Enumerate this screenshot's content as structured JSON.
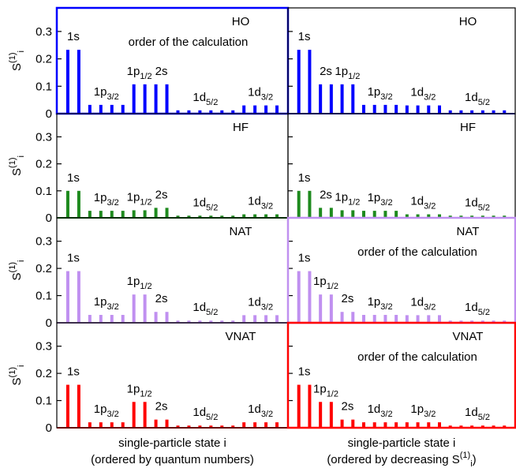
{
  "chart_data": [
    {
      "type": "bar",
      "label": "HO",
      "note": "order of the calculation",
      "highlight": true,
      "color": "#0000ff",
      "ylabel": "S(1)i",
      "ylim": [
        0,
        0.386
      ],
      "yticks": [
        0,
        0.1,
        0.2,
        0.3
      ],
      "categories": [
        "1s",
        null,
        "1p3/2",
        null,
        null,
        null,
        "1p1/2",
        null,
        "2s",
        null,
        "1d5/2",
        null,
        null,
        null,
        null,
        null,
        "1d3/2",
        null,
        null,
        null
      ],
      "values": [
        0.233,
        0.233,
        0.032,
        0.032,
        0.032,
        0.032,
        0.107,
        0.107,
        0.107,
        0.107,
        0.012,
        0.012,
        0.012,
        0.012,
        0.012,
        0.012,
        0.03,
        0.03,
        0.03,
        0.03
      ]
    },
    {
      "type": "bar",
      "label": "HO",
      "color": "#0000ff",
      "ylim": [
        0,
        0.386
      ],
      "categories": [
        "1s",
        null,
        "2s",
        null,
        "1p1/2",
        null,
        "1p3/2",
        null,
        null,
        null,
        "1d3/2",
        null,
        null,
        null,
        "1d5/2",
        null,
        null,
        null,
        null,
        null
      ],
      "values": [
        0.233,
        0.233,
        0.107,
        0.107,
        0.107,
        0.107,
        0.032,
        0.032,
        0.032,
        0.032,
        0.03,
        0.03,
        0.03,
        0.03,
        0.012,
        0.012,
        0.012,
        0.012,
        0.012,
        0.012
      ]
    },
    {
      "type": "bar",
      "label": "HF",
      "color": "#1e8a1e",
      "ylabel": "S(1)i",
      "ylim": [
        0,
        0.386
      ],
      "yticks": [
        0,
        0.1,
        0.2,
        0.3
      ],
      "categories": [
        "1s",
        null,
        "1p3/2",
        null,
        null,
        null,
        "1p1/2",
        null,
        "2s",
        null,
        "1d5/2",
        null,
        null,
        null,
        null,
        null,
        "1d3/2",
        null,
        null,
        null
      ],
      "values": [
        0.1,
        0.1,
        0.026,
        0.026,
        0.026,
        0.026,
        0.028,
        0.028,
        0.037,
        0.037,
        0.008,
        0.008,
        0.008,
        0.008,
        0.008,
        0.008,
        0.013,
        0.013,
        0.013,
        0.013
      ]
    },
    {
      "type": "bar",
      "label": "HF",
      "color": "#1e8a1e",
      "ylim": [
        0,
        0.386
      ],
      "categories": [
        "1s",
        null,
        "2s",
        null,
        "1p1/2",
        null,
        "1p3/2",
        null,
        null,
        null,
        "1d3/2",
        null,
        null,
        null,
        "1d5/2",
        null,
        null,
        null,
        null,
        null
      ],
      "values": [
        0.1,
        0.1,
        0.037,
        0.037,
        0.028,
        0.028,
        0.026,
        0.026,
        0.026,
        0.026,
        0.013,
        0.013,
        0.013,
        0.013,
        0.008,
        0.008,
        0.008,
        0.008,
        0.008,
        0.008
      ]
    },
    {
      "type": "bar",
      "label": "NAT",
      "color": "#c090f0",
      "ylabel": "S(1)i",
      "ylim": [
        0,
        0.386
      ],
      "yticks": [
        0,
        0.1,
        0.2,
        0.3
      ],
      "categories": [
        "1s",
        null,
        "1p3/2",
        null,
        null,
        null,
        "1p1/2",
        null,
        "2s",
        null,
        "1d5/2",
        null,
        null,
        null,
        null,
        null,
        "1d3/2",
        null,
        null,
        null
      ],
      "values": [
        0.19,
        0.19,
        0.029,
        0.029,
        0.029,
        0.029,
        0.104,
        0.104,
        0.04,
        0.04,
        0.008,
        0.008,
        0.008,
        0.008,
        0.008,
        0.008,
        0.028,
        0.028,
        0.028,
        0.028
      ]
    },
    {
      "type": "bar",
      "label": "NAT",
      "note": "order of the calculation",
      "highlight": true,
      "color": "#c090f0",
      "ylim": [
        0,
        0.386
      ],
      "categories": [
        "1s",
        null,
        "1p1/2",
        null,
        "2s",
        null,
        "1p3/2",
        null,
        null,
        null,
        "1d3/2",
        null,
        null,
        null,
        "1d5/2",
        null,
        null,
        null,
        null,
        null
      ],
      "values": [
        0.19,
        0.19,
        0.104,
        0.104,
        0.04,
        0.04,
        0.029,
        0.029,
        0.029,
        0.029,
        0.028,
        0.028,
        0.028,
        0.028,
        0.008,
        0.008,
        0.008,
        0.008,
        0.008,
        0.008
      ]
    },
    {
      "type": "bar",
      "label": "VNAT",
      "color": "#ff0000",
      "ylabel": "S(1)i",
      "ylim": [
        0,
        0.386
      ],
      "yticks": [
        0,
        0.1,
        0.2,
        0.3
      ],
      "categories": [
        "1s",
        null,
        "1p3/2",
        null,
        null,
        null,
        "1p1/2",
        null,
        "2s",
        null,
        "1d5/2",
        null,
        null,
        null,
        null,
        null,
        "1d3/2",
        null,
        null,
        null
      ],
      "values": [
        0.158,
        0.158,
        0.02,
        0.02,
        0.02,
        0.02,
        0.095,
        0.095,
        0.03,
        0.03,
        0.008,
        0.008,
        0.008,
        0.008,
        0.008,
        0.008,
        0.02,
        0.02,
        0.02,
        0.02
      ],
      "xlabel": [
        "single-particle state i",
        "(ordered by quantum numbers)"
      ]
    },
    {
      "type": "bar",
      "label": "VNAT",
      "note": "order of the calculation",
      "highlight": true,
      "color": "#ff0000",
      "ylim": [
        0,
        0.386
      ],
      "categories": [
        "1s",
        null,
        "1p1/2",
        null,
        "2s",
        null,
        "1d3/2",
        null,
        null,
        null,
        "1p3/2",
        null,
        null,
        null,
        "1d5/2",
        null,
        null,
        null,
        null,
        null
      ],
      "values": [
        0.158,
        0.158,
        0.095,
        0.095,
        0.03,
        0.03,
        0.02,
        0.02,
        0.02,
        0.02,
        0.02,
        0.02,
        0.02,
        0.02,
        0.008,
        0.008,
        0.008,
        0.008,
        0.008,
        0.008
      ],
      "xlabel": [
        "single-particle state i",
        "(ordered by decreasing S(1)i)"
      ]
    }
  ]
}
